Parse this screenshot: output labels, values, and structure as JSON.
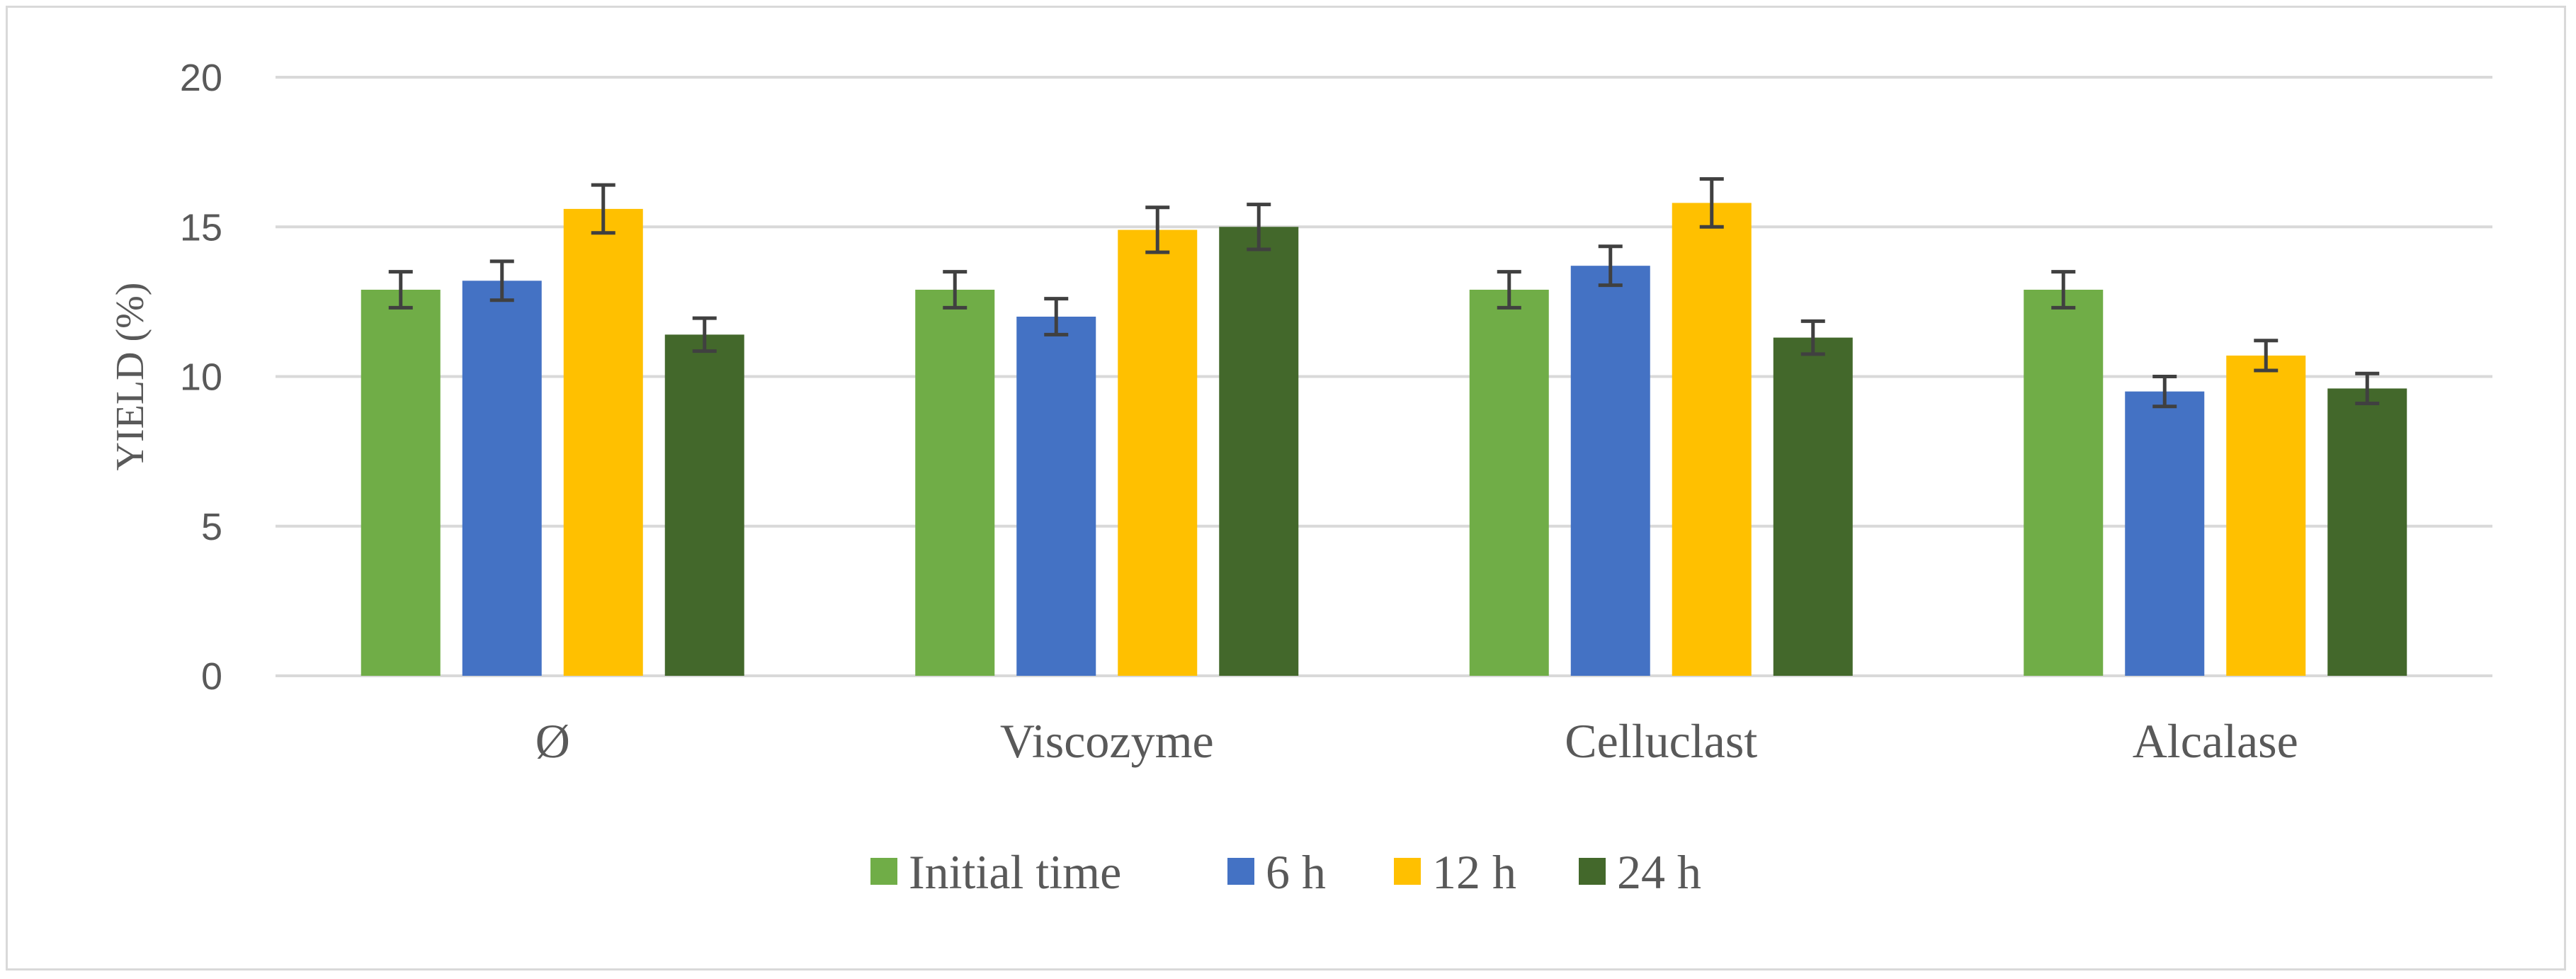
{
  "chart_data": {
    "type": "bar",
    "title": "",
    "xlabel": "",
    "ylabel": "YIELD (%)",
    "ylim": [
      0,
      20
    ],
    "yticks": [
      0,
      5,
      10,
      15,
      20
    ],
    "grid": true,
    "legend_position": "bottom",
    "categories": [
      "Ø",
      "Viscozyme",
      "Celluclast",
      "Alcalase"
    ],
    "series": [
      {
        "name": "Initial time",
        "color": "#70ad47",
        "values": [
          12.9,
          12.9,
          12.9,
          12.9
        ],
        "errors": [
          0.6,
          0.6,
          0.6,
          0.6
        ]
      },
      {
        "name": "6 h",
        "color": "#4472c4",
        "values": [
          13.2,
          12.0,
          13.7,
          9.5
        ],
        "errors": [
          0.65,
          0.6,
          0.65,
          0.5
        ]
      },
      {
        "name": "12 h",
        "color": "#ffc000",
        "values": [
          15.6,
          14.9,
          15.8,
          10.7
        ],
        "errors": [
          0.8,
          0.75,
          0.8,
          0.5
        ]
      },
      {
        "name": "24 h",
        "color": "#43682b",
        "values": [
          11.4,
          15.0,
          11.3,
          9.6
        ],
        "errors": [
          0.55,
          0.75,
          0.55,
          0.5
        ]
      }
    ]
  }
}
